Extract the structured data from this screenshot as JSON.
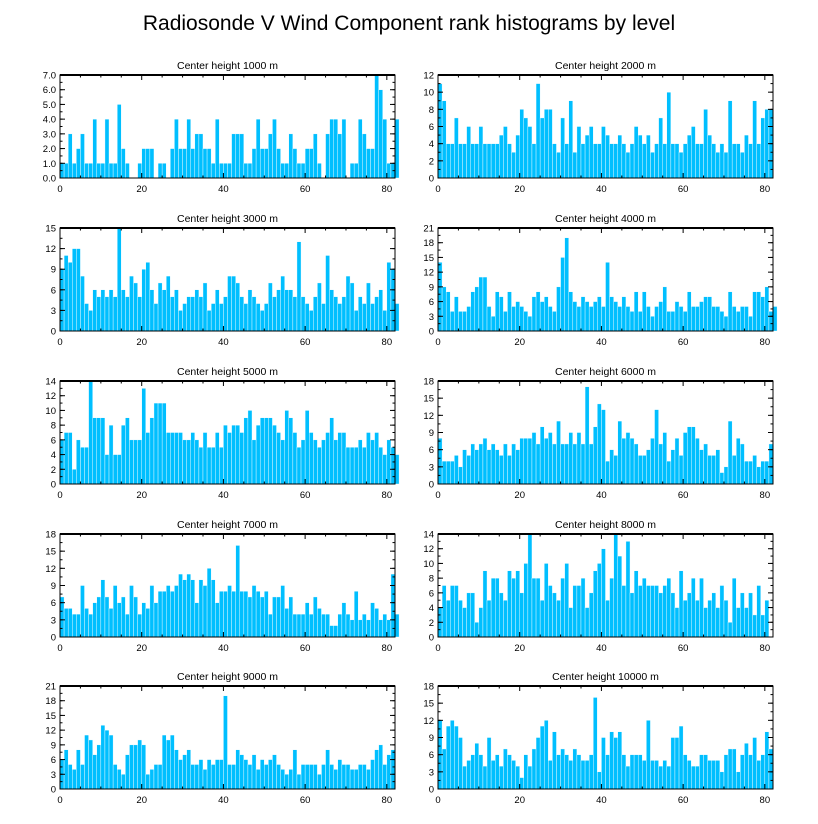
{
  "figure_title": "Radiosonde V Wind Component rank histograms by level",
  "colors": {
    "bar": "#00bfff",
    "frame": "#000000",
    "background": "#ffffff"
  },
  "chart_data": [
    {
      "type": "bar",
      "title": "Center height 1000 m",
      "xlim": [
        0,
        82
      ],
      "ylim": [
        0,
        7
      ],
      "xticks": [
        0,
        20,
        40,
        60,
        80
      ],
      "yticks": [
        0,
        1,
        2,
        3,
        4,
        5,
        6,
        7
      ],
      "ytick_labels": [
        "0.0",
        "1.0",
        "2.0",
        "3.0",
        "4.0",
        "5.0",
        "6.0",
        "7.0"
      ],
      "values": [
        1,
        1,
        3,
        1,
        2,
        3,
        1,
        1,
        4,
        1,
        1,
        4,
        1,
        1,
        5,
        2,
        1,
        0,
        0,
        1,
        2,
        2,
        2,
        0,
        1,
        1,
        0,
        2,
        4,
        2,
        2,
        4,
        2,
        3,
        3,
        2,
        2,
        1,
        4,
        1,
        1,
        1,
        3,
        3,
        3,
        1,
        1,
        2,
        4,
        2,
        2,
        3,
        4,
        2,
        1,
        1,
        3,
        2,
        1,
        1,
        2,
        2,
        3,
        1,
        0,
        3,
        4,
        4,
        3,
        4,
        0,
        1,
        1,
        4,
        3,
        2,
        2,
        7,
        6,
        4,
        1,
        1,
        4
      ]
    },
    {
      "type": "bar",
      "title": "Center height 2000 m",
      "xlim": [
        0,
        82
      ],
      "ylim": [
        0,
        12
      ],
      "xticks": [
        0,
        20,
        40,
        60,
        80
      ],
      "yticks": [
        0,
        2,
        4,
        6,
        8,
        10,
        12
      ],
      "ytick_labels": [
        "0",
        "2",
        "4",
        "6",
        "8",
        "10",
        "12"
      ],
      "values": [
        11,
        9,
        4,
        4,
        7,
        4,
        4,
        6,
        4,
        4,
        6,
        4,
        4,
        4,
        4,
        5,
        6,
        4,
        3,
        5,
        8,
        7,
        6,
        4,
        11,
        7,
        8,
        8,
        4,
        3,
        7,
        4,
        9,
        3,
        6,
        4,
        5,
        6,
        4,
        4,
        6,
        5,
        4,
        4,
        5,
        4,
        3,
        4,
        6,
        5,
        4,
        5,
        3,
        4,
        7,
        4,
        10,
        4,
        4,
        3,
        4,
        5,
        6,
        4,
        4,
        8,
        5,
        4,
        3,
        4,
        3,
        9,
        4,
        4,
        3,
        5,
        4,
        9,
        4,
        7,
        8,
        8
      ]
    },
    {
      "type": "bar",
      "title": "Center height 3000 m",
      "xlim": [
        0,
        82
      ],
      "ylim": [
        0,
        15
      ],
      "xticks": [
        0,
        20,
        40,
        60,
        80
      ],
      "yticks": [
        0,
        3,
        6,
        9,
        12,
        15
      ],
      "ytick_labels": [
        "0",
        "3",
        "6",
        "9",
        "12",
        "15"
      ],
      "values": [
        9,
        11,
        10,
        12,
        12,
        8,
        4,
        3,
        6,
        5,
        6,
        5,
        6,
        5,
        15,
        6,
        5,
        8,
        7,
        5,
        9,
        10,
        6,
        4,
        7,
        6,
        8,
        5,
        6,
        3,
        4,
        5,
        5,
        6,
        5,
        7,
        3,
        4,
        6,
        4,
        5,
        8,
        8,
        7,
        5,
        4,
        6,
        5,
        4,
        3,
        4,
        7,
        5,
        6,
        8,
        6,
        6,
        5,
        13,
        5,
        4,
        3,
        5,
        7,
        4,
        11,
        6,
        5,
        4,
        5,
        8,
        7,
        3,
        5,
        4,
        7,
        4,
        5,
        6,
        3,
        10,
        9,
        4
      ]
    },
    {
      "type": "bar",
      "title": "Center height 4000 m",
      "xlim": [
        0,
        82
      ],
      "ylim": [
        0,
        21
      ],
      "xticks": [
        0,
        20,
        40,
        60,
        80
      ],
      "yticks": [
        0,
        3,
        6,
        9,
        12,
        15,
        18,
        21
      ],
      "ytick_labels": [
        "0",
        "3",
        "6",
        "9",
        "12",
        "15",
        "18",
        "21"
      ],
      "values": [
        14,
        9,
        8,
        4,
        7,
        4,
        4,
        5,
        8,
        9,
        11,
        11,
        5,
        3,
        8,
        7,
        4,
        8,
        5,
        6,
        5,
        4,
        3,
        7,
        8,
        6,
        7,
        5,
        4,
        9,
        15,
        19,
        8,
        6,
        5,
        7,
        6,
        5,
        6,
        7,
        5,
        14,
        7,
        6,
        5,
        7,
        5,
        4,
        8,
        4,
        8,
        5,
        3,
        5,
        6,
        9,
        4,
        4,
        6,
        5,
        4,
        8,
        5,
        5,
        6,
        7,
        7,
        5,
        5,
        4,
        3,
        8,
        5,
        4,
        5,
        5,
        3,
        8,
        8,
        7,
        9,
        4,
        5
      ]
    },
    {
      "type": "bar",
      "title": "Center height 5000 m",
      "xlim": [
        0,
        82
      ],
      "ylim": [
        0,
        14
      ],
      "xticks": [
        0,
        20,
        40,
        60,
        80
      ],
      "yticks": [
        0,
        2,
        4,
        6,
        8,
        10,
        12,
        14
      ],
      "ytick_labels": [
        "0",
        "2",
        "4",
        "6",
        "8",
        "10",
        "12",
        "14"
      ],
      "values": [
        6,
        7,
        7,
        2,
        6,
        5,
        5,
        14,
        9,
        9,
        9,
        4,
        8,
        4,
        4,
        8,
        9,
        6,
        6,
        6,
        13,
        7,
        9,
        11,
        11,
        11,
        7,
        7,
        7,
        7,
        6,
        6,
        7,
        6,
        5,
        7,
        5,
        5,
        7,
        5,
        8,
        7,
        8,
        8,
        7,
        9,
        10,
        6,
        8,
        9,
        9,
        9,
        8,
        7,
        6,
        10,
        9,
        7,
        5,
        6,
        10,
        7,
        6,
        5,
        6,
        7,
        9,
        6,
        7,
        7,
        5,
        5,
        5,
        6,
        5,
        7,
        6,
        7,
        5,
        4,
        6,
        5,
        4
      ]
    },
    {
      "type": "bar",
      "title": "Center height 6000 m",
      "xlim": [
        0,
        82
      ],
      "ylim": [
        0,
        18
      ],
      "xticks": [
        0,
        20,
        40,
        60,
        80
      ],
      "yticks": [
        0,
        3,
        6,
        9,
        12,
        15,
        18
      ],
      "ytick_labels": [
        "0",
        "3",
        "6",
        "9",
        "12",
        "15",
        "18"
      ],
      "values": [
        8,
        4,
        4,
        4,
        5,
        3,
        6,
        5,
        7,
        6,
        7,
        8,
        6,
        7,
        6,
        5,
        7,
        5,
        7,
        6,
        8,
        8,
        8,
        9,
        7,
        10,
        8,
        9,
        7,
        11,
        7,
        7,
        9,
        7,
        9,
        7,
        17,
        7,
        10,
        14,
        13,
        4,
        6,
        5,
        11,
        8,
        9,
        8,
        7,
        5,
        5,
        6,
        8,
        13,
        7,
        9,
        4,
        6,
        8,
        5,
        9,
        10,
        10,
        8,
        6,
        7,
        5,
        5,
        6,
        2,
        3,
        11,
        5,
        8,
        7,
        4,
        4,
        5,
        3,
        4,
        4,
        7
      ]
    },
    {
      "type": "bar",
      "title": "Center height 7000 m",
      "xlim": [
        0,
        82
      ],
      "ylim": [
        0,
        18
      ],
      "xticks": [
        0,
        20,
        40,
        60,
        80
      ],
      "yticks": [
        0,
        3,
        6,
        9,
        12,
        15,
        18
      ],
      "ytick_labels": [
        "0",
        "3",
        "6",
        "9",
        "12",
        "15",
        "18"
      ],
      "values": [
        7,
        5,
        5,
        4,
        4,
        9,
        5,
        4,
        6,
        7,
        10,
        7,
        5,
        9,
        6,
        7,
        4,
        9,
        7,
        4,
        6,
        5,
        9,
        6,
        8,
        8,
        9,
        8,
        9,
        11,
        10,
        11,
        10,
        6,
        10,
        9,
        12,
        10,
        6,
        8,
        8,
        9,
        8,
        16,
        8,
        8,
        7,
        9,
        8,
        7,
        8,
        4,
        7,
        7,
        9,
        5,
        7,
        4,
        4,
        4,
        6,
        4,
        7,
        5,
        4,
        4,
        2,
        2,
        4,
        6,
        4,
        3,
        8,
        3,
        4,
        3,
        6,
        5,
        3,
        4,
        3,
        11,
        4
      ]
    },
    {
      "type": "bar",
      "title": "Center height 8000 m",
      "xlim": [
        0,
        82
      ],
      "ylim": [
        0,
        14
      ],
      "xticks": [
        0,
        20,
        40,
        60,
        80
      ],
      "yticks": [
        0,
        2,
        4,
        6,
        8,
        10,
        12,
        14
      ],
      "ytick_labels": [
        "0",
        "2",
        "4",
        "6",
        "8",
        "10",
        "12",
        "14"
      ],
      "values": [
        4,
        7,
        5,
        7,
        7,
        5,
        4,
        6,
        6,
        2,
        4,
        9,
        5,
        8,
        8,
        6,
        5,
        9,
        8,
        9,
        6,
        10,
        14,
        8,
        8,
        5,
        10,
        7,
        6,
        5,
        8,
        10,
        4,
        7,
        7,
        8,
        4,
        6,
        9,
        10,
        12,
        5,
        8,
        14,
        11,
        7,
        13,
        6,
        9,
        7,
        8,
        7,
        7,
        7,
        6,
        7,
        8,
        6,
        4,
        9,
        5,
        6,
        8,
        5,
        8,
        4,
        5,
        6,
        4,
        7,
        5,
        2,
        8,
        4,
        6,
        4,
        6,
        3,
        7,
        3,
        5
      ]
    },
    {
      "type": "bar",
      "title": "Center height 9000 m",
      "xlim": [
        0,
        82
      ],
      "ylim": [
        0,
        21
      ],
      "xticks": [
        0,
        20,
        40,
        60,
        80
      ],
      "yticks": [
        0,
        3,
        6,
        9,
        12,
        15,
        18,
        21
      ],
      "ytick_labels": [
        "0",
        "3",
        "6",
        "9",
        "12",
        "15",
        "18",
        "21"
      ],
      "values": [
        6,
        8,
        5,
        4,
        8,
        5,
        11,
        10,
        7,
        9,
        13,
        12,
        11,
        5,
        4,
        3,
        7,
        9,
        9,
        10,
        9,
        3,
        4,
        5,
        5,
        11,
        10,
        11,
        8,
        6,
        7,
        8,
        5,
        5,
        6,
        4,
        6,
        5,
        6,
        6,
        19,
        5,
        5,
        8,
        7,
        6,
        5,
        7,
        4,
        6,
        5,
        6,
        7,
        5,
        4,
        3,
        4,
        8,
        3,
        5,
        5,
        5,
        5,
        3,
        5,
        8,
        5,
        4,
        6,
        5,
        5,
        4,
        4,
        5,
        5,
        4,
        6,
        8,
        9,
        5,
        7,
        8
      ]
    },
    {
      "type": "bar",
      "title": "Center height 10000 m",
      "xlim": [
        0,
        82
      ],
      "ylim": [
        0,
        18
      ],
      "xticks": [
        0,
        20,
        40,
        60,
        80
      ],
      "yticks": [
        0,
        3,
        6,
        9,
        12,
        15,
        18
      ],
      "ytick_labels": [
        "0",
        "3",
        "6",
        "9",
        "12",
        "15",
        "18"
      ],
      "values": [
        12,
        7,
        11,
        12,
        11,
        9,
        4,
        5,
        6,
        8,
        6,
        4,
        9,
        5,
        6,
        4,
        7,
        6,
        5,
        4,
        2,
        6,
        4,
        7,
        9,
        11,
        12,
        5,
        10,
        6,
        7,
        6,
        5,
        7,
        6,
        5,
        5,
        6,
        16,
        3,
        9,
        6,
        10,
        9,
        10,
        6,
        4,
        6,
        6,
        6,
        5,
        12,
        5,
        5,
        4,
        5,
        4,
        9,
        9,
        11,
        6,
        5,
        4,
        4,
        6,
        6,
        5,
        5,
        5,
        3,
        6,
        7,
        7,
        3,
        6,
        8,
        6,
        9,
        5,
        6,
        10,
        7
      ]
    }
  ]
}
